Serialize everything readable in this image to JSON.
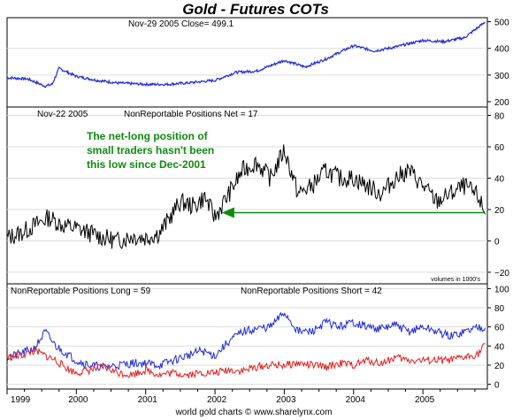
{
  "title": "Gold - Futures COTs",
  "footer": "world gold charts © www.sharelynx.com",
  "colors": {
    "title": "#1f22d6",
    "blue_series": "#1f2bd9",
    "red_series": "#e21d1d",
    "net_series": "#000000",
    "arrow": "#0d8a0d",
    "note_text": "#0d8a0d"
  },
  "x_axis": {
    "ticks": [
      "1999",
      "2000",
      "2001",
      "2002",
      "2003",
      "2004",
      "2005"
    ]
  },
  "chart_data": [
    {
      "type": "line",
      "panel": "price",
      "header": "Nov-29  2005   Close= 499.1",
      "ylim": [
        190,
        505
      ],
      "yticks": [
        "200",
        "300",
        "400",
        "500"
      ],
      "x": [
        1999.0,
        1999.3,
        1999.55,
        1999.65,
        1999.75,
        2000.0,
        2000.3,
        2000.6,
        2001.0,
        2001.3,
        2001.6,
        2002.0,
        2002.3,
        2002.6,
        2003.0,
        2003.3,
        2003.6,
        2004.0,
        2004.3,
        2004.6,
        2005.0,
        2005.3,
        2005.6,
        2005.9
      ],
      "series": [
        {
          "values": [
            290,
            285,
            258,
            265,
            325,
            295,
            280,
            270,
            265,
            265,
            270,
            280,
            310,
            315,
            355,
            330,
            360,
            410,
            390,
            405,
            430,
            425,
            440,
            499.1
          ]
        }
      ]
    },
    {
      "type": "line",
      "panel": "net",
      "header": "Nov-22  2005",
      "label": "NonReportable Positions Net = 17",
      "annotation": [
        "The net-long position of",
        "small traders hasn't been",
        "this low since Dec-2001"
      ],
      "ylim": [
        -24,
        82
      ],
      "yticks": [
        "80",
        "60",
        "40",
        "20",
        "0",
        "−20"
      ],
      "units_note": "volumes in 1000's",
      "x": [
        1999.0,
        1999.2,
        1999.4,
        1999.6,
        1999.8,
        2000.0,
        2000.2,
        2000.4,
        2000.6,
        2000.8,
        2001.0,
        2001.2,
        2001.35,
        2001.5,
        2001.7,
        2001.85,
        2002.0,
        2002.2,
        2002.4,
        2002.6,
        2002.8,
        2003.0,
        2003.2,
        2003.4,
        2003.6,
        2003.8,
        2004.0,
        2004.2,
        2004.4,
        2004.6,
        2004.8,
        2005.0,
        2005.2,
        2005.4,
        2005.6,
        2005.8,
        2005.9
      ],
      "series": [
        {
          "values": [
            2,
            5,
            10,
            15,
            10,
            8,
            5,
            2,
            0,
            3,
            2,
            5,
            15,
            25,
            22,
            28,
            15,
            30,
            45,
            50,
            40,
            58,
            30,
            35,
            45,
            40,
            40,
            35,
            30,
            40,
            45,
            35,
            25,
            30,
            35,
            28,
            17
          ]
        }
      ],
      "arrow": {
        "from_x": 2005.9,
        "to_x": 2002.1,
        "y": 18
      }
    },
    {
      "type": "line",
      "panel": "long_short",
      "label_left": "NonReportable Positions Long = 59",
      "label_right": "NonReportable Positions Short = 42",
      "ylim": [
        -5,
        105
      ],
      "yticks": [
        "100",
        "80",
        "60",
        "40",
        "20",
        "0"
      ],
      "x": [
        1999.0,
        1999.2,
        1999.4,
        1999.55,
        1999.7,
        1999.9,
        2000.0,
        2000.2,
        2000.4,
        2000.6,
        2000.8,
        2001.0,
        2001.2,
        2001.4,
        2001.6,
        2001.8,
        2002.0,
        2002.2,
        2002.4,
        2002.6,
        2002.8,
        2003.0,
        2003.2,
        2003.4,
        2003.6,
        2003.8,
        2004.0,
        2004.2,
        2004.4,
        2004.6,
        2004.8,
        2005.0,
        2005.2,
        2005.4,
        2005.6,
        2005.8,
        2005.9
      ],
      "series": [
        {
          "name": "NonReportable Positions Long",
          "values": [
            28,
            32,
            38,
            55,
            40,
            30,
            25,
            20,
            18,
            20,
            22,
            22,
            20,
            25,
            30,
            35,
            30,
            45,
            55,
            58,
            60,
            75,
            55,
            55,
            65,
            60,
            65,
            60,
            58,
            62,
            55,
            60,
            55,
            50,
            55,
            60,
            59
          ]
        },
        {
          "name": "NonReportable Positions Short",
          "values": [
            28,
            30,
            35,
            30,
            25,
            15,
            12,
            15,
            18,
            12,
            10,
            15,
            10,
            12,
            10,
            12,
            12,
            15,
            14,
            18,
            20,
            20,
            22,
            20,
            18,
            22,
            20,
            25,
            22,
            28,
            25,
            25,
            25,
            25,
            28,
            32,
            42
          ]
        }
      ]
    }
  ]
}
